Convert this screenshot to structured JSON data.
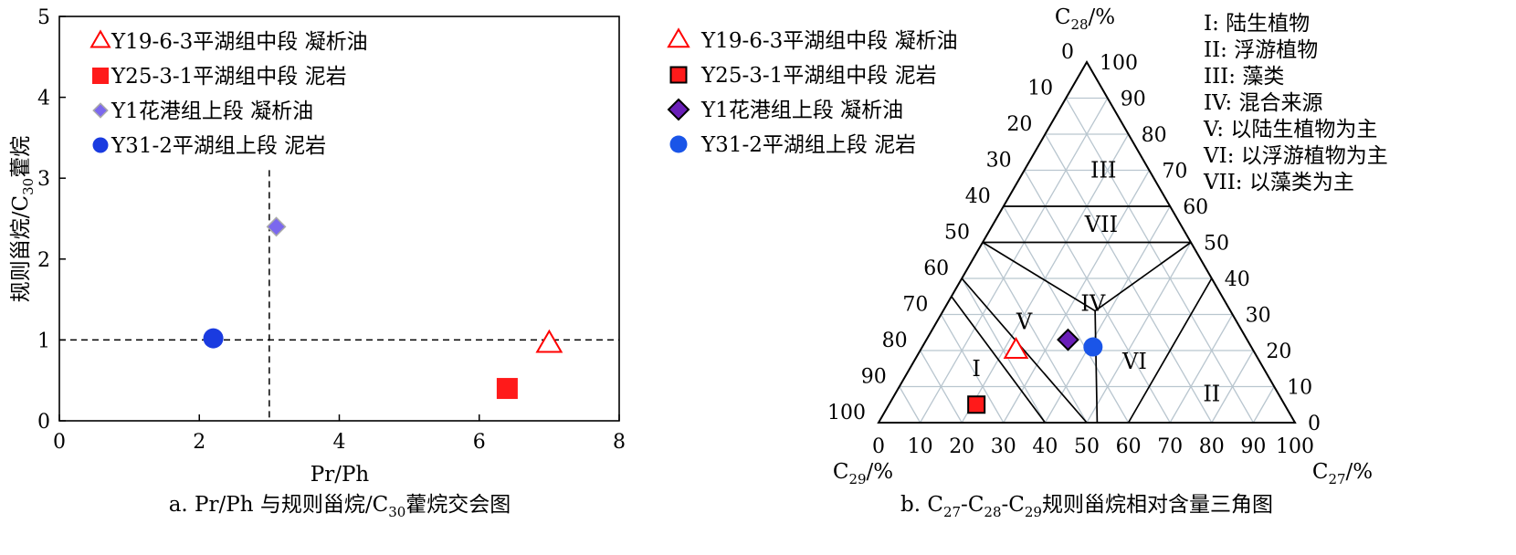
{
  "chart_data": [
    {
      "type": "scatter",
      "caption": "a. Pr/Ph 与规则甾烷/C30藿烷交会图",
      "caption_parts": {
        "prefix": "a. Pr/Ph 与规则甾烷/C",
        "sub": "30",
        "suffix": "藿烷交会图"
      },
      "xlabel": "Pr/Ph",
      "ylabel": {
        "prefix": "规则甾烷/C",
        "sub": "30",
        "suffix": "藿烷"
      },
      "xlim": [
        0,
        8
      ],
      "ylim": [
        0,
        5
      ],
      "xticks": [
        0,
        2,
        4,
        6,
        8
      ],
      "yticks": [
        0,
        1,
        2,
        3,
        4,
        5
      ],
      "reference_lines": {
        "x": 3.0,
        "y": 1.0
      },
      "series": [
        {
          "name": "Y19-6-3平湖组中段 凝析油",
          "marker": "triangle-open",
          "color": "#ff0000",
          "x": 7.0,
          "y": 0.95
        },
        {
          "name": "Y25-3-1平湖组中段 泥岩",
          "marker": "square",
          "color": "#ff1a1a",
          "x": 6.4,
          "y": 0.4
        },
        {
          "name": "Y1花港组上段 凝析油",
          "marker": "diamond",
          "color": "#7b68ee",
          "x": 3.1,
          "y": 2.4
        },
        {
          "name": "Y31-2平湖组上段 泥岩",
          "marker": "circle",
          "color": "#1a3be0",
          "x": 2.2,
          "y": 1.02
        }
      ]
    },
    {
      "type": "ternary",
      "caption_parts": {
        "a1": "b. C",
        "s1": "27",
        "a2": "-C",
        "s2": "28",
        "a3": "-C",
        "s3": "29",
        "a4": "规则甾烷相对含量三角图"
      },
      "axes": {
        "top": {
          "prefix": "C",
          "sub": "28",
          "suffix": "/%"
        },
        "left": {
          "prefix": "C",
          "sub": "29",
          "suffix": "/%"
        },
        "right": {
          "prefix": "C",
          "sub": "27",
          "suffix": "/%"
        }
      },
      "ticks": [
        "0",
        "10",
        "20",
        "30",
        "40",
        "50",
        "60",
        "70",
        "80",
        "90",
        "100"
      ],
      "regions": [
        {
          "id": "I",
          "text": "I: 陆生植物"
        },
        {
          "id": "II",
          "text": "II: 浮游植物"
        },
        {
          "id": "III",
          "text": "III: 藻类"
        },
        {
          "id": "IV",
          "text": "IV: 混合来源"
        },
        {
          "id": "V",
          "text": "V: 以陆生植物为主"
        },
        {
          "id": "VI",
          "text": "VI: 以浮游植物为主"
        },
        {
          "id": "VII",
          "text": "VII: 以藻类为主"
        }
      ],
      "series": [
        {
          "name": "Y19-6-3平湖组中段 凝析油",
          "marker": "triangle-open",
          "color": "#ff0000",
          "c27": 23,
          "c28": 20,
          "c29": 57
        },
        {
          "name": "Y25-3-1平湖组中段 泥岩",
          "marker": "square",
          "color": "#ff1a1a",
          "c27": 21,
          "c28": 5,
          "c29": 74
        },
        {
          "name": "Y1花港组上段 凝析油",
          "marker": "diamond",
          "color": "#6a1fb8",
          "c27": 34,
          "c28": 23,
          "c29": 43
        },
        {
          "name": "Y31-2平湖组上段 泥岩",
          "marker": "circle",
          "color": "#1a55e8",
          "c27": 41,
          "c28": 21,
          "c29": 38
        }
      ]
    }
  ]
}
